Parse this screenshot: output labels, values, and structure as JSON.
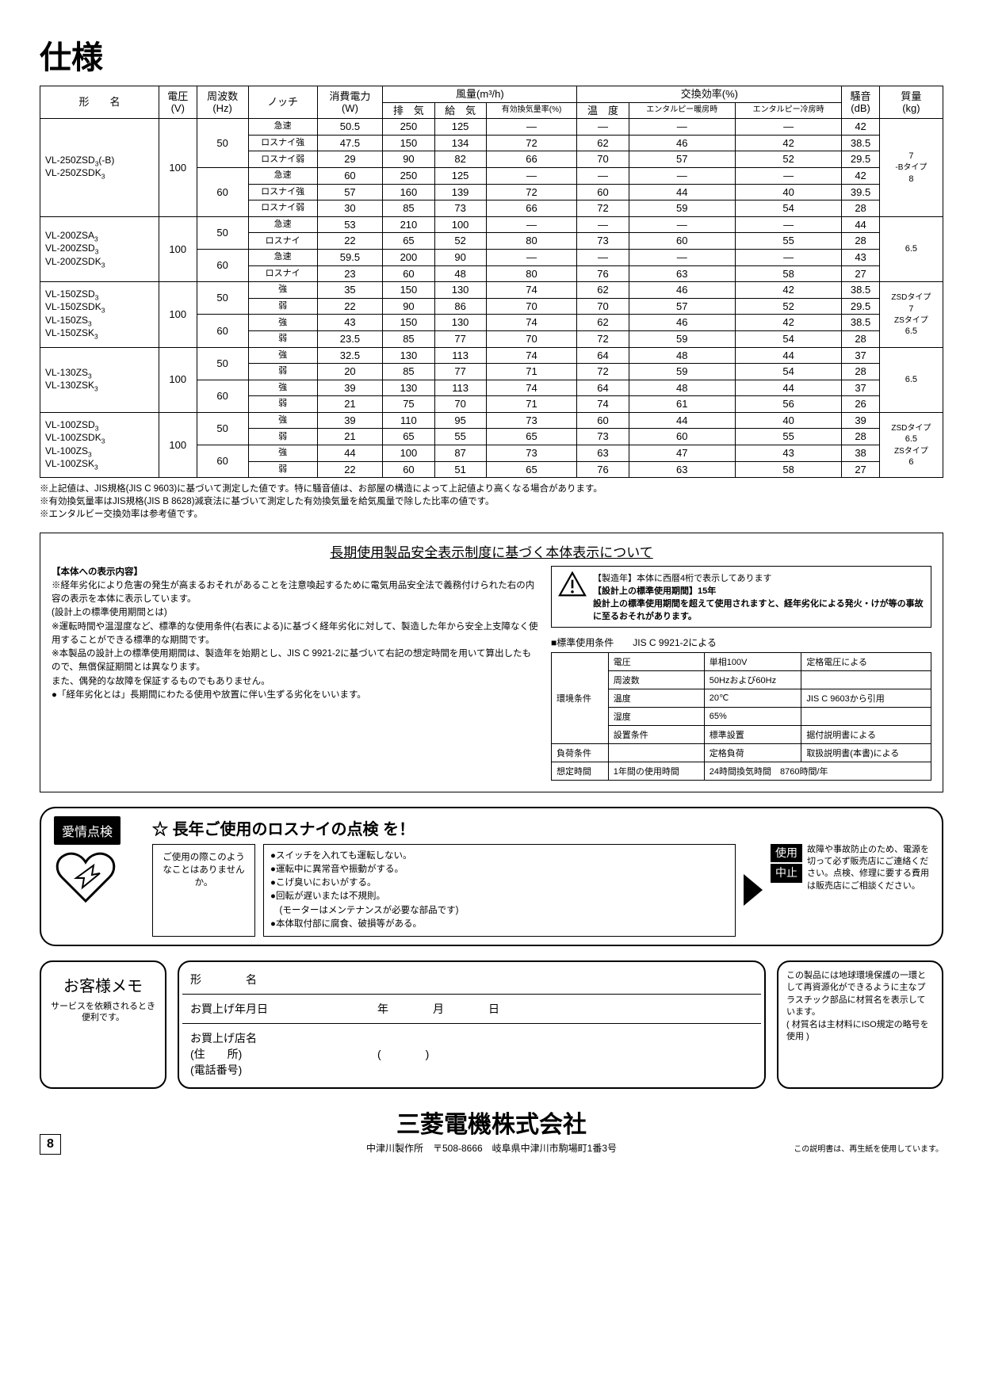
{
  "page_title": "仕様",
  "spec_headers": {
    "model": "形　　名",
    "voltage": "電圧",
    "voltage_unit": "(V)",
    "freq": "周波数",
    "freq_unit": "(Hz)",
    "notch": "ノッチ",
    "power": "消費電力",
    "power_unit": "(W)",
    "airflow_group": "風量(m³/h)",
    "exhaust": "排　気",
    "supply": "給　気",
    "eff_vent": "有効換気量率(%)",
    "exchange_group": "交換効率(%)",
    "temp": "温　度",
    "enth_heat": "エンタルピー暖房時",
    "enth_cool": "エンタルピー冷房時",
    "noise": "騒音",
    "noise_unit": "(dB)",
    "mass": "質量",
    "mass_unit": "(kg)"
  },
  "spec_groups": [
    {
      "model_html": "VL-250ZSD<sub>3</sub>(-B)<br>VL-250ZSDK<sub>3</sub>",
      "voltage": "100",
      "mass_html": "7<br><span style='font-size:10px'>-Bタイプ</span><br>8",
      "freqs": [
        {
          "hz": "50",
          "rows": [
            {
              "notch": "急速",
              "vals": [
                "50.5",
                "250",
                "125",
                "—",
                "—",
                "—",
                "—",
                "42"
              ]
            },
            {
              "notch": "ロスナイ強",
              "vals": [
                "47.5",
                "150",
                "134",
                "72",
                "62",
                "46",
                "42",
                "38.5"
              ]
            },
            {
              "notch": "ロスナイ弱",
              "vals": [
                "29",
                "90",
                "82",
                "66",
                "70",
                "57",
                "52",
                "29.5"
              ]
            }
          ]
        },
        {
          "hz": "60",
          "rows": [
            {
              "notch": "急速",
              "vals": [
                "60",
                "250",
                "125",
                "—",
                "—",
                "—",
                "—",
                "42"
              ]
            },
            {
              "notch": "ロスナイ強",
              "vals": [
                "57",
                "160",
                "139",
                "72",
                "60",
                "44",
                "40",
                "39.5"
              ]
            },
            {
              "notch": "ロスナイ弱",
              "vals": [
                "30",
                "85",
                "73",
                "66",
                "72",
                "59",
                "54",
                "28"
              ]
            }
          ]
        }
      ]
    },
    {
      "model_html": "VL-200ZSA<sub>3</sub><br>VL-200ZSD<sub>3</sub><br>VL-200ZSDK<sub>3</sub>",
      "voltage": "100",
      "mass_html": "6.5",
      "freqs": [
        {
          "hz": "50",
          "rows": [
            {
              "notch": "急速",
              "vals": [
                "53",
                "210",
                "100",
                "—",
                "—",
                "—",
                "—",
                "44"
              ]
            },
            {
              "notch": "ロスナイ",
              "vals": [
                "22",
                "65",
                "52",
                "80",
                "73",
                "60",
                "55",
                "28"
              ]
            }
          ]
        },
        {
          "hz": "60",
          "rows": [
            {
              "notch": "急速",
              "vals": [
                "59.5",
                "200",
                "90",
                "—",
                "—",
                "—",
                "—",
                "43"
              ]
            },
            {
              "notch": "ロスナイ",
              "vals": [
                "23",
                "60",
                "48",
                "80",
                "76",
                "63",
                "58",
                "27"
              ]
            }
          ]
        }
      ]
    },
    {
      "model_html": "VL-150ZSD<sub>3</sub><br>VL-150ZSDK<sub>3</sub><br>VL-150ZS<sub>3</sub><br>VL-150ZSK<sub>3</sub>",
      "voltage": "100",
      "mass_html": "<span style='font-size:10px'>ZSDタイプ</span><br>7<br><span style='font-size:10px'>ZSタイプ</span><br>6.5",
      "freqs": [
        {
          "hz": "50",
          "rows": [
            {
              "notch": "強",
              "vals": [
                "35",
                "150",
                "130",
                "74",
                "62",
                "46",
                "42",
                "38.5"
              ]
            },
            {
              "notch": "弱",
              "vals": [
                "22",
                "90",
                "86",
                "70",
                "70",
                "57",
                "52",
                "29.5"
              ]
            }
          ]
        },
        {
          "hz": "60",
          "rows": [
            {
              "notch": "強",
              "vals": [
                "43",
                "150",
                "130",
                "74",
                "62",
                "46",
                "42",
                "38.5"
              ]
            },
            {
              "notch": "弱",
              "vals": [
                "23.5",
                "85",
                "77",
                "70",
                "72",
                "59",
                "54",
                "28"
              ]
            }
          ]
        }
      ]
    },
    {
      "model_html": "VL-130ZS<sub>3</sub><br>VL-130ZSK<sub>3</sub>",
      "voltage": "100",
      "mass_html": "6.5",
      "freqs": [
        {
          "hz": "50",
          "rows": [
            {
              "notch": "強",
              "vals": [
                "32.5",
                "130",
                "113",
                "74",
                "64",
                "48",
                "44",
                "37"
              ]
            },
            {
              "notch": "弱",
              "vals": [
                "20",
                "85",
                "77",
                "71",
                "72",
                "59",
                "54",
                "28"
              ]
            }
          ]
        },
        {
          "hz": "60",
          "rows": [
            {
              "notch": "強",
              "vals": [
                "39",
                "130",
                "113",
                "74",
                "64",
                "48",
                "44",
                "37"
              ]
            },
            {
              "notch": "弱",
              "vals": [
                "21",
                "75",
                "70",
                "71",
                "74",
                "61",
                "56",
                "26"
              ]
            }
          ]
        }
      ]
    },
    {
      "model_html": "VL-100ZSD<sub>3</sub><br>VL-100ZSDK<sub>3</sub><br>VL-100ZS<sub>3</sub><br>VL-100ZSK<sub>3</sub>",
      "voltage": "100",
      "mass_html": "<span style='font-size:10px'>ZSDタイプ</span><br>6.5<br><span style='font-size:10px'>ZSタイプ</span><br>6",
      "freqs": [
        {
          "hz": "50",
          "rows": [
            {
              "notch": "強",
              "vals": [
                "39",
                "110",
                "95",
                "73",
                "60",
                "44",
                "40",
                "39"
              ]
            },
            {
              "notch": "弱",
              "vals": [
                "21",
                "65",
                "55",
                "65",
                "73",
                "60",
                "55",
                "28"
              ]
            }
          ]
        },
        {
          "hz": "60",
          "rows": [
            {
              "notch": "強",
              "vals": [
                "44",
                "100",
                "87",
                "73",
                "63",
                "47",
                "43",
                "38"
              ]
            },
            {
              "notch": "弱",
              "vals": [
                "22",
                "60",
                "51",
                "65",
                "76",
                "63",
                "58",
                "27"
              ]
            }
          ]
        }
      ]
    }
  ],
  "notes": [
    "※上記値は、JIS規格(JIS C 9603)に基づいて測定した値です。特に騒音値は、お部屋の構造によって上記値より高くなる場合があります。",
    "※有効換気量率はJIS規格(JIS B 8628)減衰法に基づいて測定した有効換気量を給気風量で除した比率の値です。",
    "※エンタルビー交換効率は参考値です。"
  ],
  "safety": {
    "title": "長期使用製品安全表示制度に基づく本体表示について",
    "left_heading": "【本体への表示内容】",
    "left_body": "※経年劣化により危害の発生が高まるおそれがあることを注意喚起するために電気用品安全法で義務付けられた右の内容の表示を本体に表示しています。\n(設計上の標準使用期間とは)\n※運転時間や温湿度など、標準的な使用条件(右表による)に基づく経年劣化に対して、製造した年から安全上支障なく使用することができる標準的な期間です。\n※本製品の設計上の標準使用期間は、製造年を始期とし、JIS C 9921-2に基づいて右記の想定時間を用いて算出したもので、無償保証期間とは異なります。\nまた、偶発的な故障を保証するものでもありません。\n●「経年劣化とは」長期間にわたる使用や放置に伴い生ずる劣化をいいます。",
    "warn1": "【製造年】本体に西暦4桁で表示してあります",
    "warn2": "【設計上の標準使用期間】15年",
    "warn3": "設計上の標準使用期間を超えて使用されますと、経年劣化による発火・けが等の事故に至るおそれがあります。",
    "std_title": "■標準使用条件　　JIS C 9921-2による",
    "std_rows": [
      [
        "環境条件",
        "電圧",
        "単相100V",
        "定格電圧による"
      ],
      [
        "",
        "周波数",
        "50Hzおよび60Hz",
        ""
      ],
      [
        "",
        "温度",
        "20℃",
        "JIS C 9603から引用"
      ],
      [
        "",
        "湿度",
        "65%",
        ""
      ],
      [
        "",
        "設置条件",
        "標準設置",
        "据付説明書による"
      ],
      [
        "負荷条件",
        "",
        "定格負荷",
        "取扱説明書(本書)による"
      ],
      [
        "想定時間",
        "1年間の使用時間",
        "24時間換気時間　8760時間/年",
        ""
      ]
    ]
  },
  "insp": {
    "badge": "愛情点検",
    "head": "☆ 長年ご使用のロスナイの点検 を！",
    "question": "ご使用の際このようなことはありませんか。",
    "list": [
      "●スイッチを入れても運転しない。",
      "●運転中に異常音や振動がする。",
      "●こげ臭いにおいがする。",
      "●回転が遅いまたは不規則。",
      "　(モーターはメンテナンスが必要な部品です)",
      "●本体取付部に腐食、破損等がある。"
    ],
    "stop1": "使用",
    "stop2": "中止",
    "stop_text": "故障や事故防止のため、電源を切って必ず販売店にご連絡ください。点検、修理に要する費用は販売店にご相談ください。"
  },
  "memo": {
    "left_title": "お客様メモ",
    "left_sub": "サービスを依頼されるとき便利です。",
    "rows": [
      {
        "label": "形　　　　名",
        "value": ""
      },
      {
        "label": "お買上げ年月日",
        "value": "　　　　年　　　　月　　　　日"
      },
      {
        "label": "お買上げ店名\n(住　　所)\n(電話番号)",
        "value": "　　　　(　　　　)"
      }
    ],
    "right": "この製品には地球環境保護の一環として再資源化ができるように主なプラスチック部品に材質名を表示しています。\n( 材質名は主材料にISO規定の略号を使用 )"
  },
  "footer": {
    "company": "三菱電機株式会社",
    "addr": "中津川製作所　〒508-8666　岐阜県中津川市駒場町1番3号",
    "page": "8",
    "eco": "この説明書は、再生紙を使用しています。"
  }
}
